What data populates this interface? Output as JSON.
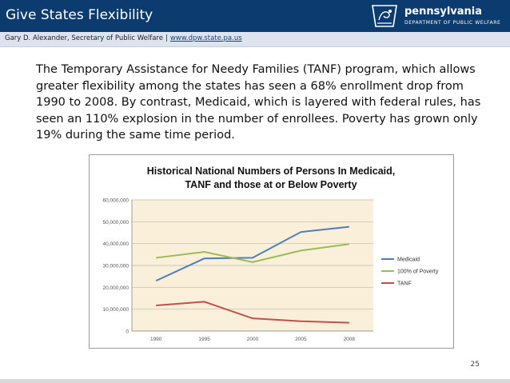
{
  "header": {
    "title": "Give States Flexibility"
  },
  "logo": {
    "name": "pennsylvania",
    "subtitle": "DEPARTMENT OF PUBLIC WELFARE"
  },
  "subheader": {
    "author": "Gary D. Alexander,  Secretary of Public Welfare",
    "separator": "|",
    "url": "www.dpw.state.pa.us"
  },
  "body": {
    "paragraph": "The Temporary Assistance for Needy Families (TANF) program, which allows greater flexibility among the states has seen a 68% enrollment drop from 1990 to 2008.  By contrast, Medicaid, which is layered with federal rules, has seen an 110% explosion in the number of enrollees.  Poverty has grown only 19% during the same time period."
  },
  "page_number": "25",
  "colors": {
    "header_bg": "#0b3b6f",
    "plot_bg": "#faf0d9",
    "medicaid": "#4f7dba",
    "poverty": "#9bbb59",
    "tanf": "#c0504d"
  },
  "chart_data": {
    "type": "line",
    "title": "Historical National Numbers of Persons In Medicaid, TANF and those at or Below Poverty",
    "title_lines": [
      "Historical National Numbers of Persons In Medicaid,",
      "TANF and those at or Below Poverty"
    ],
    "categories": [
      "1990",
      "1995",
      "2000",
      "2005",
      "2008"
    ],
    "series": [
      {
        "name": "Medicaid",
        "values": [
          23000000,
          33200000,
          33500000,
          45300000,
          47700000
        ]
      },
      {
        "name": "100% of Poverty",
        "values": [
          33500000,
          36200000,
          31500000,
          36800000,
          39800000
        ]
      },
      {
        "name": "TANF",
        "values": [
          11700000,
          13400000,
          5800000,
          4500000,
          3800000
        ]
      }
    ],
    "ylim": [
      0,
      60000000
    ],
    "y_ticks": [
      0,
      10000000,
      20000000,
      30000000,
      40000000,
      50000000,
      60000000
    ],
    "y_tick_labels": [
      "0",
      "10,000,000",
      "20,000,000",
      "30,000,000",
      "40,000,000",
      "50,000,000",
      "60,000,000"
    ],
    "xlabel": "",
    "ylabel": "",
    "grid": true,
    "legend_position": "right"
  }
}
